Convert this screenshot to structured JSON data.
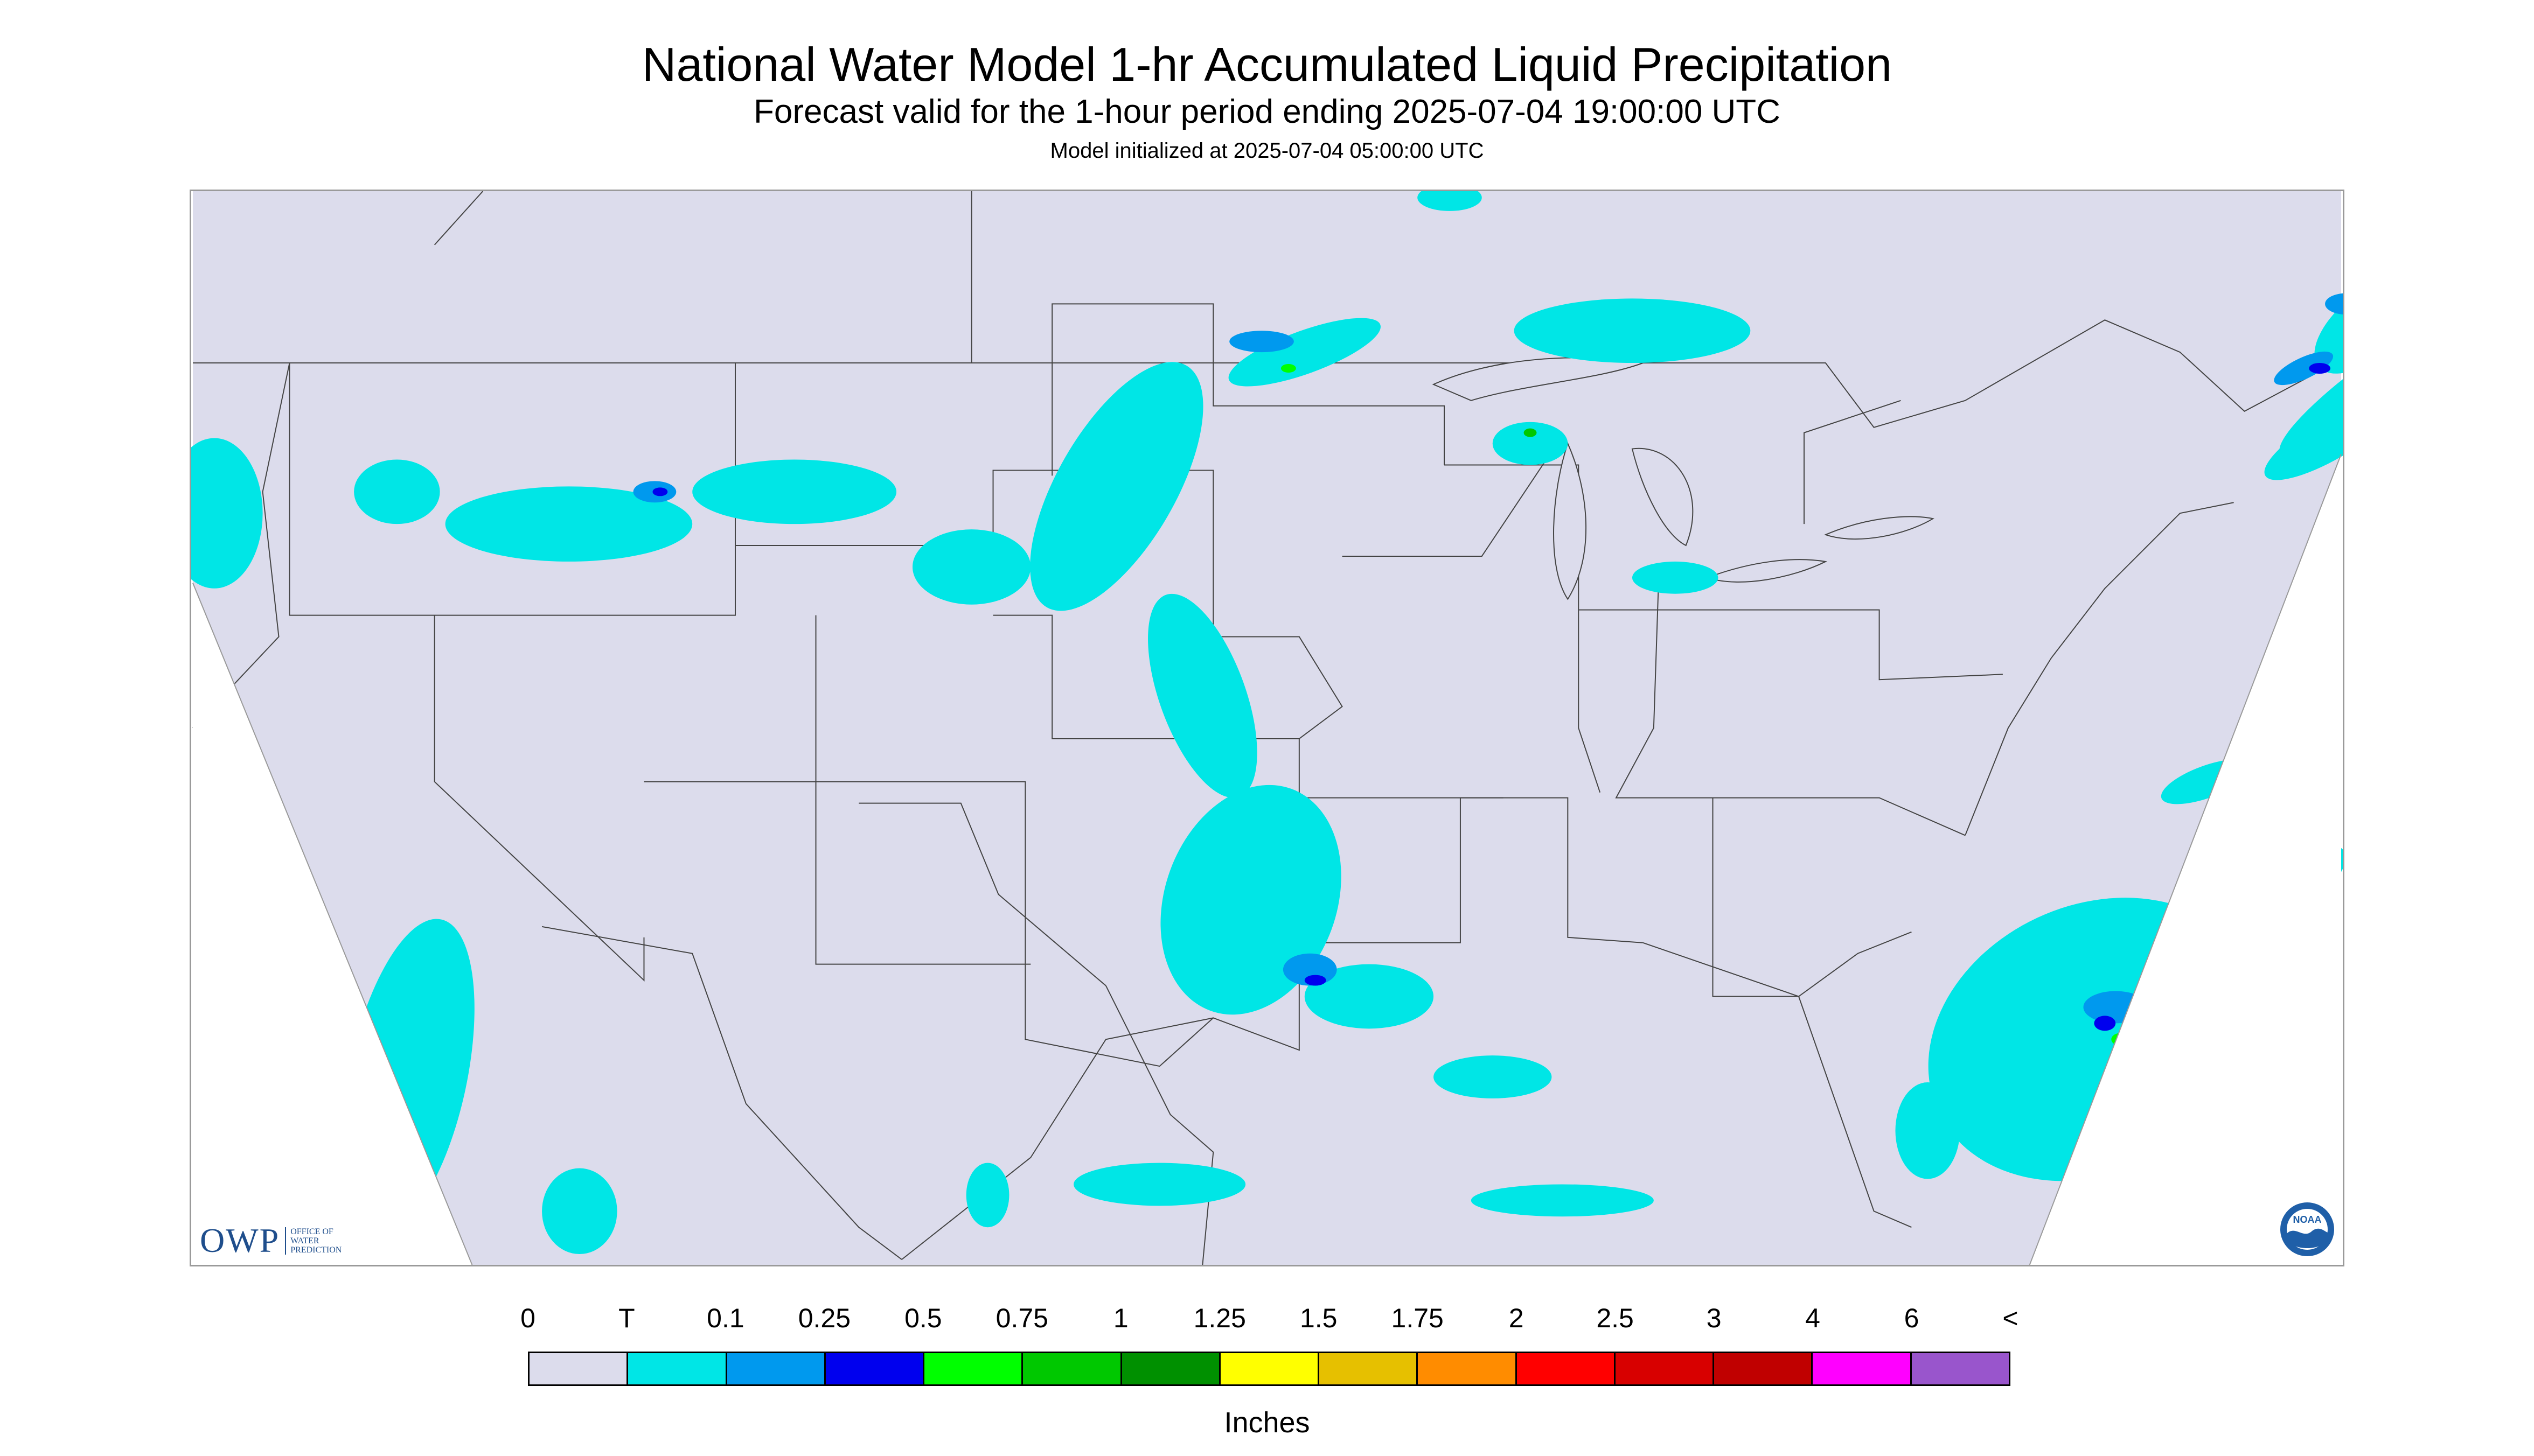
{
  "header": {
    "title": "National Water Model 1-hr Accumulated Liquid Precipitation",
    "subtitle": "Forecast valid for the 1-hour period ending 2025-07-04 19:00:00 UTC",
    "init": "Model initialized at 2025-07-04 05:00:00 UTC"
  },
  "map": {
    "background_color": "#dcdcec",
    "outside_color": "#ffffff",
    "border_color": "#444444",
    "logos": {
      "owp_mark": "OWP",
      "owp_text": [
        "OFFICE OF",
        "WATER",
        "PREDICTION"
      ],
      "noaa_text": "NOAA"
    }
  },
  "legend": {
    "labels": [
      "0",
      "T",
      "0.1",
      "0.25",
      "0.5",
      "0.75",
      "1",
      "1.25",
      "1.5",
      "1.75",
      "2",
      "2.5",
      "3",
      "4",
      "6",
      "<"
    ],
    "colors": [
      "#dcdcec",
      "#00e6e6",
      "#0099ee",
      "#0000ee",
      "#00ff00",
      "#00c800",
      "#009000",
      "#ffff00",
      "#e6c000",
      "#ff8c00",
      "#ff0000",
      "#d80000",
      "#c00000",
      "#ff00ff",
      "#9955cc"
    ],
    "units": "Inches"
  }
}
